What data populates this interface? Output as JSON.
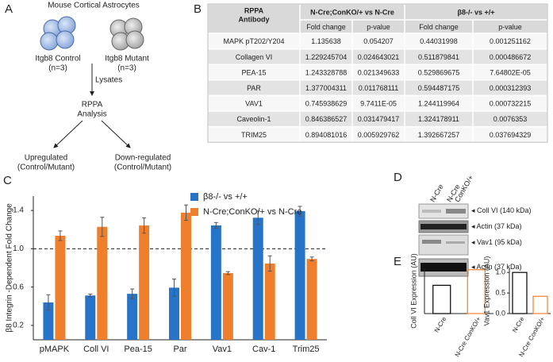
{
  "panel_labels": [
    "A",
    "B",
    "C",
    "D",
    "E"
  ],
  "panel_a": {
    "title": "Mouse Cortical Astrocytes",
    "groups": [
      {
        "name": "Itgb8 Control",
        "n": "(n=3)"
      },
      {
        "name": "Itgb8 Mutant",
        "n": "(n=3)"
      }
    ],
    "step": "Lysates",
    "analysis": [
      "RPPA",
      "Analysis"
    ],
    "outcomes": [
      [
        "Upregulated",
        "(Control/Mutant)"
      ],
      [
        "Down-regulated",
        "(Control/Mutant)"
      ]
    ]
  },
  "table": {
    "header": {
      "antibody": [
        "RPPA",
        "Antibody"
      ],
      "groups": [
        "N-Cre;ConKO/+ vs N-Cre",
        "β8-/- vs +/+"
      ],
      "columns": [
        "Fold change",
        "p-value",
        "Fold change",
        "p-value"
      ]
    },
    "rows": [
      [
        "MAPK pT202/Y204",
        "1.135638",
        "0.054207",
        "0.44031998",
        "0.001251162"
      ],
      [
        "Collagen VI",
        "1.229245704",
        "0.024643021",
        "0.511879841",
        "0.000486672"
      ],
      [
        "PEA-15",
        "1.243328788",
        "0.021349633",
        "0.529869675",
        "7.64802E-05"
      ],
      [
        "PAR",
        "1.377004311",
        "0.011768111",
        "0.594487175",
        "0.000312393"
      ],
      [
        "VAV1",
        "0.745938629",
        "9.7411E-05",
        "1.244119964",
        "0.000732215"
      ],
      [
        "Caveolin-1",
        "0.846386527",
        "0.031479417",
        "1.324178911",
        "0.0076353"
      ],
      [
        "TRIM25",
        "0.894081016",
        "0.005929762",
        "1.392667257",
        "0.037694329"
      ]
    ]
  },
  "panel_d": {
    "lanes": [
      [
        "N-Cre"
      ],
      [
        "N-Cre",
        "ConKO/+"
      ]
    ],
    "bands": [
      "Coll VI (140 kDa)",
      "Actin (37 kDa)",
      "Vav1 (95 kDa)",
      "Actin (37 kDa)"
    ]
  },
  "chart_data": [
    {
      "type": "bar",
      "y_label": "β8 Integrin -Dependent Fold Change",
      "categories": [
        "pMAPK",
        "Coll VI",
        "Pea-15",
        "Par",
        "Vav1",
        "Cav-1",
        "Trim25"
      ],
      "series": [
        {
          "name": "β8-/- vs +/+",
          "color": "#2673c8",
          "values": [
            0.44,
            0.512,
            0.53,
            0.594,
            1.244,
            1.324,
            1.393
          ],
          "errors": [
            0.08,
            0.015,
            0.05,
            0.09,
            0.03,
            0.07,
            0.05
          ]
        },
        {
          "name": "N-Cre;ConKO/+ vs N-Cre",
          "color": "#ef7f2d",
          "values": [
            1.136,
            1.229,
            1.243,
            1.377,
            0.746,
            0.846,
            0.894
          ],
          "errors": [
            0.05,
            0.1,
            0.08,
            0.08,
            0.015,
            0.08,
            0.02
          ]
        }
      ],
      "ylim": [
        0.05,
        1.55
      ],
      "yticks": [
        0.2,
        0.6,
        {
          "value": 1,
          "label": "1.0"
        },
        1.4
      ],
      "reference_line": 1,
      "legend": "top"
    },
    {
      "type": "bar",
      "y_label": "Coll VI Expression (AU)",
      "categories": [
        "N-Cre",
        "N-Cre ConKO/+"
      ],
      "values": [
        1,
        1.55
      ],
      "colors": [
        "#000000",
        "#ef7f2d"
      ],
      "ylim": [
        0,
        1.6
      ]
    },
    {
      "type": "bar",
      "y_label": "Vav1 Expression (AU)",
      "categories": [
        "N-Cre",
        "N-Cre ConKO/+"
      ],
      "values": [
        1,
        0.42
      ],
      "colors": [
        "#000000",
        "#ef7f2d"
      ],
      "ylim": [
        0,
        1.1
      ],
      "yticks": [
        {
          "value": 0,
          "label": "0.0"
        },
        {
          "value": 0.5,
          "label": "0.5"
        },
        {
          "value": 1,
          "label": "1.0"
        }
      ]
    }
  ]
}
